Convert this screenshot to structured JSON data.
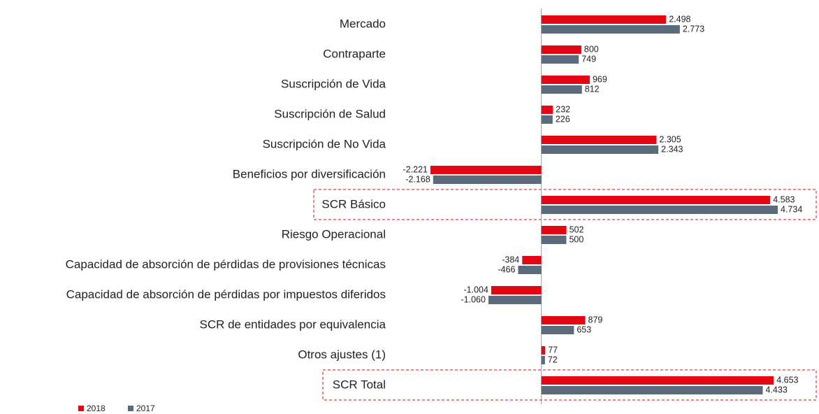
{
  "chart_data": {
    "type": "bar",
    "orientation": "horizontal",
    "categories": [
      "Mercado",
      "Contraparte",
      "Suscripción de Vida",
      "Suscripción de Salud",
      "Suscripción de No Vida",
      "Beneficios por diversificación",
      "SCR Básico",
      "Riesgo Operacional",
      "Capacidad de absorción de pérdidas de provisiones técnicas",
      "Capacidad de absorción de pérdidas por impuestos diferidos",
      "SCR de entidades por equivalencia",
      "Otros ajustes (1)",
      "SCR Total"
    ],
    "series": [
      {
        "name": "2018",
        "color": "#e30613",
        "values": [
          2498,
          800,
          969,
          232,
          2305,
          -2221,
          4583,
          502,
          -384,
          -1004,
          879,
          77,
          4653
        ],
        "value_labels": [
          "2.498",
          "800",
          "969",
          "232",
          "2.305",
          "-2.221",
          "4.583",
          "502",
          "-384",
          "-1.004",
          "879",
          "77",
          "4.653"
        ]
      },
      {
        "name": "2017",
        "color": "#5b6b7b",
        "values": [
          2773,
          749,
          812,
          226,
          2343,
          -2168,
          4734,
          500,
          -466,
          -1060,
          653,
          72,
          4433
        ],
        "value_labels": [
          "2.773",
          "749",
          "812",
          "226",
          "2.343",
          "-2.168",
          "4.734",
          "500",
          "-466",
          "-1.060",
          "653",
          "72",
          "4.433"
        ]
      }
    ]
  }
}
